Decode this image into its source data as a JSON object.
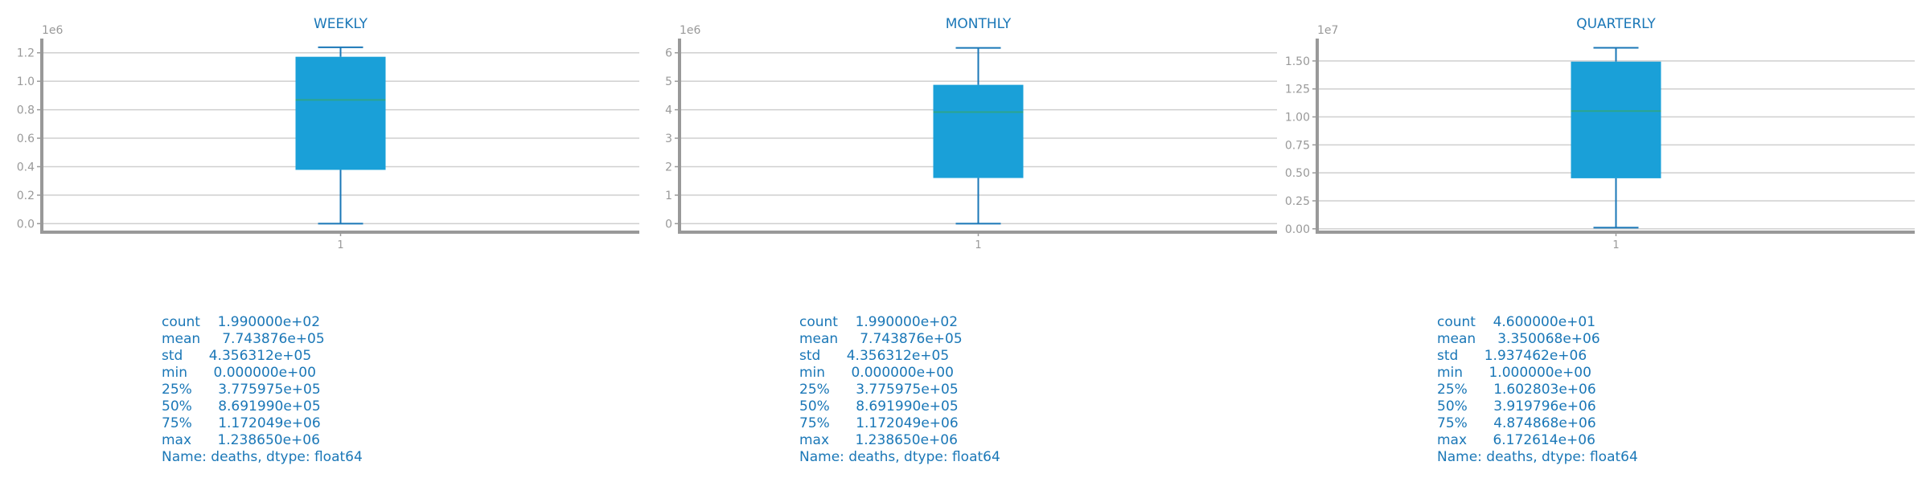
{
  "colors": {
    "title": "#1a77b7",
    "box": "#1aa0d8",
    "whisker": "#1a77b7",
    "median": "#2ca58d",
    "grid": "#cfcfcf",
    "axis": "#999999",
    "tick": "#999999"
  },
  "chart_data": [
    {
      "type": "box",
      "title": "WEEKLY",
      "category": "1",
      "scale_label": "1e6",
      "ylim": [
        -0.06,
        1.3
      ],
      "yticks": [
        0.0,
        0.2,
        0.4,
        0.6,
        0.8,
        1.0,
        1.2
      ],
      "ytick_labels": [
        "0.0",
        "0.2",
        "0.4",
        "0.6",
        "0.8",
        "1.0",
        "1.2"
      ],
      "grid": true,
      "box": {
        "min": 0.0,
        "q1": 0.3775975,
        "median": 0.869199,
        "q3": 1.172049,
        "max": 1.23865
      }
    },
    {
      "type": "box",
      "title": "MONTHLY",
      "category": "1",
      "scale_label": "1e6",
      "ylim": [
        -0.3,
        6.5
      ],
      "yticks": [
        0,
        1,
        2,
        3,
        4,
        5,
        6
      ],
      "ytick_labels": [
        "0",
        "1",
        "2",
        "3",
        "4",
        "5",
        "6"
      ],
      "grid": true,
      "box": {
        "min": 0.0,
        "q1": 1.602803,
        "median": 3.919796,
        "q3": 4.874868,
        "max": 6.172614
      }
    },
    {
      "type": "box",
      "title": "QUARTERLY",
      "category": "1",
      "scale_label": "1e7",
      "ylim": [
        -0.03,
        1.7
      ],
      "yticks": [
        0.0,
        0.25,
        0.5,
        0.75,
        1.0,
        1.25,
        1.5
      ],
      "ytick_labels": [
        "0.00",
        "0.25",
        "0.50",
        "0.75",
        "1.00",
        "1.25",
        "1.50"
      ],
      "grid": true,
      "box": {
        "min": 0.01,
        "q1": 0.4517,
        "median": 1.0518,
        "q3": 1.4939,
        "max": 1.6171
      }
    }
  ],
  "stats": [
    {
      "text": "count    1.990000e+02\nmean     7.743876e+05\nstd      4.356312e+05\nmin      0.000000e+00\n25%      3.775975e+05\n50%      8.691990e+05\n75%      1.172049e+06\nmax      1.238650e+06\nName: deaths, dtype: float64"
    },
    {
      "text": "count    1.990000e+02\nmean     7.743876e+05\nstd      4.356312e+05\nmin      0.000000e+00\n25%      3.775975e+05\n50%      8.691990e+05\n75%      1.172049e+06\nmax      1.238650e+06\nName: deaths, dtype: float64"
    },
    {
      "text": "count    4.600000e+01\nmean     3.350068e+06\nstd      1.937462e+06\nmin      1.000000e+00\n25%      1.602803e+06\n50%      3.919796e+06\n75%      4.874868e+06\nmax      6.172614e+06\nName: deaths, dtype: float64"
    }
  ]
}
